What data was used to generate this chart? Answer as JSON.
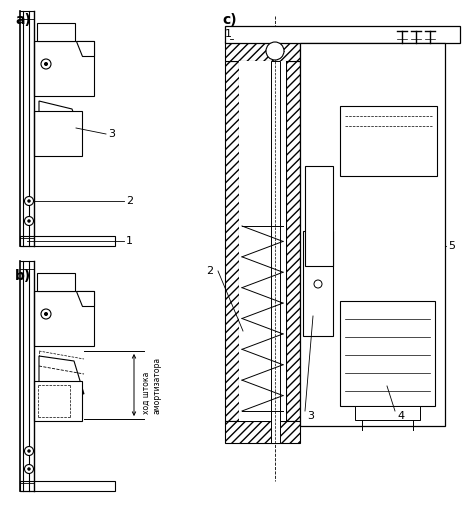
{
  "bg_color": "#ffffff",
  "figsize": [
    4.7,
    5.31
  ],
  "dpi": 100,
  "label_a": "a)",
  "label_b": "b)",
  "label_c": "c)",
  "text_stroke": "ход штока\nамортизатора"
}
